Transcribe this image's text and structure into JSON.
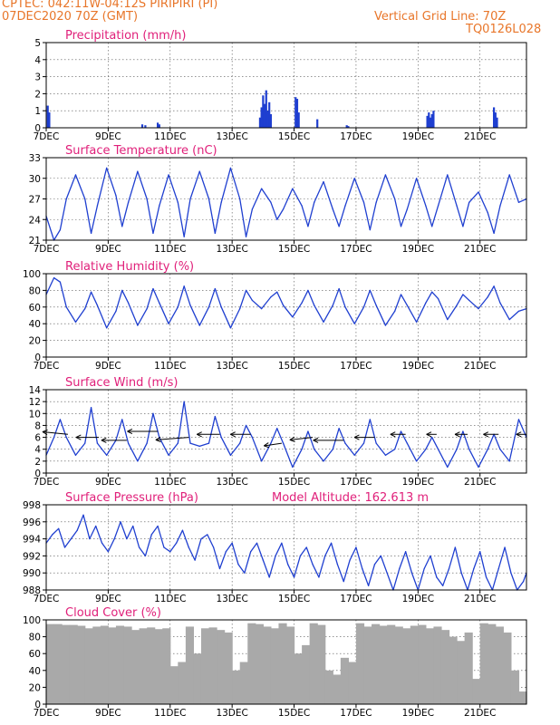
{
  "header": {
    "line1": "CPTEC:   042:11W-04:12S   PIRIPIRI (PI)",
    "line2": "07DEC2020 70Z (GMT)",
    "grid_note": "Vertical Grid Line: 70Z",
    "run_id": "TQ0126L028"
  },
  "colors": {
    "header": "#e8762a",
    "title": "#e0207a",
    "line": "#1f3fd0",
    "bar_precip": "#1f3fd0",
    "bar_cloud": "#a9a9a9",
    "arrow": "#000000",
    "grid": "#555555"
  },
  "x_ticks": [
    "7DEC",
    "9DEC",
    "11DEC",
    "13DEC",
    "15DEC",
    "17DEC",
    "19DEC",
    "21DEC"
  ],
  "chart_data": [
    {
      "type": "bar",
      "title": "Precipitation (mm/h)",
      "xlim": [
        0,
        15.5
      ],
      "ylim": [
        0,
        5
      ],
      "yticks": [
        "0",
        "1",
        "2",
        "3",
        "4",
        "5"
      ],
      "x": [
        0.05,
        0.1,
        3.1,
        3.2,
        3.6,
        3.65,
        6.9,
        6.95,
        7.0,
        7.05,
        7.1,
        7.15,
        7.2,
        7.25,
        8.05,
        8.1,
        8.15,
        8.75,
        9.7,
        9.75,
        12.3,
        12.35,
        12.4,
        12.45,
        12.5,
        14.45,
        14.5,
        14.55
      ],
      "values": [
        1.3,
        0.9,
        0.2,
        0.15,
        0.3,
        0.2,
        0.6,
        1.2,
        1.9,
        1.4,
        2.2,
        1.0,
        1.5,
        0.8,
        1.8,
        1.7,
        0.9,
        0.5,
        0.15,
        0.1,
        0.7,
        0.9,
        0.6,
        0.8,
        1.0,
        1.2,
        0.9,
        0.6
      ]
    },
    {
      "type": "line",
      "title": "Surface Temperature (nC)",
      "xlim": [
        0,
        15.5
      ],
      "ylim": [
        21,
        33
      ],
      "yticks": [
        "21",
        "24",
        "27",
        "30",
        "33"
      ],
      "x": [
        0.0,
        0.25,
        0.45,
        0.65,
        0.95,
        1.25,
        1.45,
        1.65,
        1.95,
        2.25,
        2.45,
        2.65,
        2.95,
        3.25,
        3.45,
        3.65,
        3.95,
        4.25,
        4.45,
        4.65,
        4.95,
        5.25,
        5.45,
        5.65,
        5.95,
        6.25,
        6.45,
        6.65,
        6.95,
        7.25,
        7.45,
        7.65,
        7.95,
        8.25,
        8.45,
        8.65,
        8.95,
        9.25,
        9.45,
        9.65,
        9.95,
        10.25,
        10.45,
        10.65,
        10.95,
        11.25,
        11.45,
        11.65,
        11.95,
        12.25,
        12.45,
        12.65,
        12.95,
        13.25,
        13.45,
        13.65,
        13.95,
        14.25,
        14.45,
        14.65,
        14.95,
        15.25,
        15.5
      ],
      "y": [
        24.5,
        21.0,
        22.5,
        27.0,
        30.5,
        27.0,
        22.0,
        26.0,
        31.5,
        27.5,
        23.0,
        26.5,
        31.0,
        27.0,
        22.0,
        26.0,
        30.5,
        26.5,
        21.5,
        27.0,
        31.0,
        27.0,
        22.0,
        26.5,
        31.5,
        27.0,
        21.5,
        25.5,
        28.5,
        26.5,
        24.0,
        25.5,
        28.5,
        26.0,
        23.0,
        26.5,
        29.5,
        25.5,
        23.0,
        26.0,
        30.0,
        26.5,
        22.5,
        26.5,
        30.5,
        27.0,
        23.0,
        25.5,
        30.0,
        26.0,
        23.0,
        26.0,
        30.5,
        26.0,
        23.0,
        26.5,
        28.0,
        25.0,
        22.0,
        26.0,
        30.5,
        26.5,
        27.0
      ]
    },
    {
      "type": "line",
      "title": "Relative Humidity (%)",
      "xlim": [
        0,
        15.5
      ],
      "ylim": [
        0,
        100
      ],
      "yticks": [
        "0",
        "20",
        "40",
        "60",
        "80",
        "100"
      ],
      "x": [
        0.0,
        0.25,
        0.45,
        0.65,
        0.95,
        1.25,
        1.45,
        1.65,
        1.95,
        2.25,
        2.45,
        2.65,
        2.95,
        3.25,
        3.45,
        3.65,
        3.95,
        4.25,
        4.45,
        4.65,
        4.95,
        5.25,
        5.45,
        5.65,
        5.95,
        6.25,
        6.45,
        6.65,
        6.95,
        7.25,
        7.45,
        7.65,
        7.95,
        8.25,
        8.45,
        8.65,
        8.95,
        9.25,
        9.45,
        9.65,
        9.95,
        10.25,
        10.45,
        10.65,
        10.95,
        11.25,
        11.45,
        11.65,
        11.95,
        12.25,
        12.45,
        12.65,
        12.95,
        13.25,
        13.45,
        13.65,
        13.95,
        14.25,
        14.45,
        14.65,
        14.95,
        15.25,
        15.5
      ],
      "y": [
        75,
        95,
        90,
        60,
        42,
        58,
        78,
        62,
        35,
        55,
        80,
        65,
        38,
        58,
        82,
        65,
        40,
        60,
        85,
        62,
        38,
        60,
        82,
        60,
        35,
        58,
        80,
        68,
        58,
        72,
        78,
        62,
        48,
        65,
        80,
        62,
        42,
        62,
        82,
        60,
        40,
        60,
        80,
        62,
        38,
        55,
        75,
        62,
        42,
        65,
        78,
        70,
        45,
        62,
        75,
        68,
        58,
        72,
        85,
        65,
        45,
        55,
        58
      ]
    },
    {
      "type": "line",
      "title": "Surface Wind (m/s)",
      "xlim": [
        0,
        15.5
      ],
      "ylim": [
        0,
        14
      ],
      "yticks": [
        "0",
        "2",
        "4",
        "6",
        "8",
        "10",
        "12",
        "14"
      ],
      "x": [
        0.0,
        0.25,
        0.45,
        0.65,
        0.95,
        1.25,
        1.45,
        1.65,
        1.95,
        2.25,
        2.45,
        2.65,
        2.95,
        3.25,
        3.45,
        3.65,
        3.95,
        4.25,
        4.45,
        4.65,
        4.95,
        5.25,
        5.45,
        5.65,
        5.95,
        6.25,
        6.45,
        6.65,
        6.95,
        7.25,
        7.45,
        7.65,
        7.95,
        8.25,
        8.45,
        8.65,
        8.95,
        9.25,
        9.45,
        9.65,
        9.95,
        10.25,
        10.45,
        10.65,
        10.95,
        11.25,
        11.45,
        11.65,
        11.95,
        12.25,
        12.45,
        12.65,
        12.95,
        13.25,
        13.45,
        13.65,
        13.95,
        14.25,
        14.45,
        14.65,
        14.95,
        15.25,
        15.5
      ],
      "y": [
        3.0,
        6.0,
        9.0,
        6.0,
        3.0,
        5.0,
        11.0,
        5.0,
        3.0,
        5.5,
        9.0,
        5.0,
        2.0,
        5.0,
        10.0,
        6.0,
        3.0,
        5.0,
        12.0,
        5.0,
        4.5,
        5.0,
        9.5,
        6.0,
        3.0,
        5.0,
        8.0,
        6.0,
        2.0,
        5.0,
        7.5,
        5.0,
        1.0,
        4.0,
        7.0,
        4.0,
        2.0,
        4.0,
        7.5,
        5.0,
        3.0,
        5.0,
        9.0,
        5.0,
        3.0,
        4.0,
        7.0,
        5.0,
        2.0,
        4.0,
        6.0,
        4.0,
        1.0,
        4.0,
        7.0,
        4.0,
        1.0,
        4.0,
        6.5,
        4.0,
        2.0,
        9.0,
        6.0
      ],
      "wind_arrows": {
        "x": [
          0.7,
          1.7,
          2.6,
          3.6,
          4.6,
          5.6,
          6.6,
          7.6,
          8.6,
          9.6,
          10.6,
          11.6,
          12.6,
          13.6,
          14.6,
          15.5
        ],
        "level": [
          6.5,
          6.0,
          5.5,
          7.0,
          6.0,
          6.5,
          6.5,
          5.0,
          6.0,
          5.5,
          6.0,
          6.5,
          6.5,
          6.5,
          6.5,
          6.5
        ],
        "u": [
          -1.0,
          -0.9,
          -1.0,
          -1.2,
          -1.3,
          -0.9,
          -0.8,
          -0.7,
          -0.9,
          -1.2,
          -0.8,
          -0.6,
          -0.4,
          -0.5,
          -0.6,
          -0.4
        ],
        "v": [
          0.1,
          0.0,
          0.0,
          0.0,
          -0.1,
          0.0,
          0.0,
          -0.1,
          -0.1,
          0.0,
          0.0,
          0.0,
          0.0,
          0.0,
          0.0,
          0.0
        ]
      }
    },
    {
      "type": "line",
      "title": "Surface Pressure (hPa)",
      "annotation": "Model Altitude: 162.613 m",
      "xlim": [
        0,
        15.5
      ],
      "ylim": [
        988,
        998
      ],
      "yticks": [
        "988",
        "990",
        "992",
        "994",
        "996",
        "998"
      ],
      "x": [
        0.0,
        0.2,
        0.4,
        0.6,
        0.8,
        1.0,
        1.2,
        1.4,
        1.6,
        1.8,
        2.0,
        2.2,
        2.4,
        2.6,
        2.8,
        3.0,
        3.2,
        3.4,
        3.6,
        3.8,
        4.0,
        4.2,
        4.4,
        4.6,
        4.8,
        5.0,
        5.2,
        5.4,
        5.6,
        5.8,
        6.0,
        6.2,
        6.4,
        6.6,
        6.8,
        7.0,
        7.2,
        7.4,
        7.6,
        7.8,
        8.0,
        8.2,
        8.4,
        8.6,
        8.8,
        9.0,
        9.2,
        9.4,
        9.6,
        9.8,
        10.0,
        10.2,
        10.4,
        10.6,
        10.8,
        11.0,
        11.2,
        11.4,
        11.6,
        11.8,
        12.0,
        12.2,
        12.4,
        12.6,
        12.8,
        13.0,
        13.2,
        13.4,
        13.6,
        13.8,
        14.0,
        14.2,
        14.4,
        14.6,
        14.8,
        15.0,
        15.2,
        15.4,
        15.5
      ],
      "y": [
        993.5,
        994.5,
        995.2,
        993.0,
        994.0,
        995.0,
        996.8,
        994.0,
        995.5,
        993.5,
        992.5,
        994.0,
        996.0,
        994.0,
        995.5,
        993.0,
        992.0,
        994.5,
        995.5,
        993.0,
        992.5,
        993.5,
        995.0,
        993.0,
        991.5,
        994.0,
        994.5,
        993.0,
        990.5,
        992.5,
        993.5,
        991.0,
        990.0,
        992.5,
        993.5,
        991.5,
        989.5,
        992.0,
        993.5,
        991.0,
        989.5,
        992.0,
        993.0,
        991.0,
        989.5,
        992.0,
        993.5,
        991.0,
        989.0,
        991.5,
        993.0,
        990.5,
        988.5,
        991.0,
        992.0,
        990.0,
        988.0,
        990.5,
        992.5,
        990.0,
        988.0,
        990.5,
        992.0,
        989.5,
        988.5,
        990.5,
        993.0,
        990.0,
        988.0,
        990.5,
        992.5,
        989.5,
        988.0,
        990.5,
        993.0,
        990.0,
        988.0,
        989.0,
        990.0
      ]
    },
    {
      "type": "bar",
      "title": "Cloud Cover (%)",
      "xlim": [
        0,
        15.5
      ],
      "ylim": [
        0,
        100
      ],
      "yticks": [
        "0",
        "20",
        "40",
        "60",
        "80",
        "100"
      ],
      "x": [
        0.0,
        0.25,
        0.5,
        0.75,
        1.0,
        1.25,
        1.5,
        1.75,
        2.0,
        2.25,
        2.5,
        2.75,
        3.0,
        3.25,
        3.5,
        3.75,
        4.0,
        4.25,
        4.5,
        4.75,
        5.0,
        5.25,
        5.5,
        5.75,
        6.0,
        6.25,
        6.5,
        6.75,
        7.0,
        7.25,
        7.5,
        7.75,
        8.0,
        8.25,
        8.5,
        8.75,
        9.0,
        9.25,
        9.5,
        9.75,
        10.0,
        10.25,
        10.5,
        10.75,
        11.0,
        11.25,
        11.5,
        11.75,
        12.0,
        12.25,
        12.5,
        12.75,
        13.0,
        13.25,
        13.5,
        13.75,
        14.0,
        14.25,
        14.5,
        14.75,
        15.0,
        15.25
      ],
      "values": [
        95,
        95,
        94,
        94,
        93,
        90,
        92,
        93,
        91,
        93,
        92,
        88,
        90,
        91,
        89,
        90,
        45,
        50,
        92,
        60,
        90,
        91,
        88,
        85,
        40,
        50,
        96,
        95,
        92,
        90,
        96,
        92,
        60,
        70,
        96,
        94,
        40,
        35,
        55,
        50,
        96,
        92,
        95,
        93,
        94,
        92,
        90,
        93,
        94,
        90,
        92,
        88,
        80,
        75,
        85,
        30,
        96,
        95,
        92,
        85,
        40,
        15
      ]
    }
  ]
}
